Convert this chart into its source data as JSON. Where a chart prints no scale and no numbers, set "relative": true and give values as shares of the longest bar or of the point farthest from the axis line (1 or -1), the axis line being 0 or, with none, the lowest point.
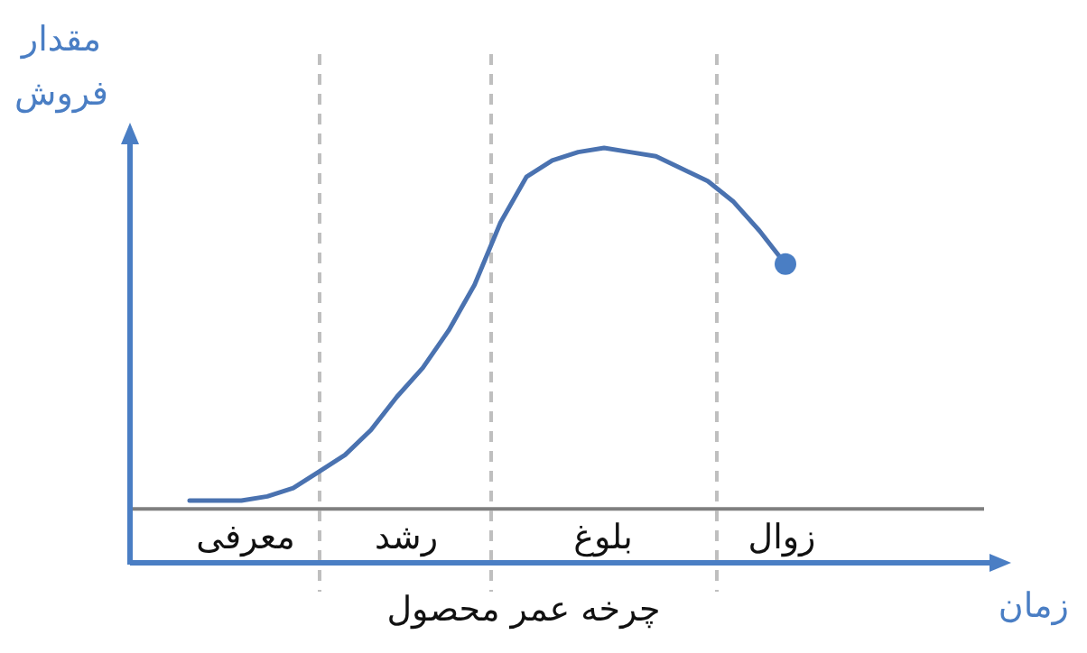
{
  "chart_data": {
    "type": "line",
    "relative": true,
    "ylabel": "مقدار فروش",
    "annotations": [
      "معرفی",
      "رشد",
      "بلوغ",
      "زوال",
      "چرخه عمر محصول",
      "زمان"
    ],
    "categories": [
      null,
      null,
      null,
      null,
      null,
      null,
      null,
      null,
      null,
      null,
      null,
      null,
      null,
      null,
      null,
      null,
      null,
      null,
      null,
      null,
      null,
      null,
      null,
      null
    ],
    "series": [
      {
        "color": "#4a72b0",
        "values": [
          0.15,
          0.15,
          0.15,
          0.16,
          0.18,
          0.22,
          0.26,
          0.32,
          0.4,
          0.47,
          0.56,
          0.67,
          0.82,
          0.93,
          0.97,
          0.99,
          1.0,
          0.99,
          0.98,
          0.95,
          0.92,
          0.87,
          0.8,
          0.72
        ]
      }
    ],
    "ref_lines": [
      {
        "axis": "y",
        "value": 0.13,
        "color": "#7f7f7f",
        "line_style": "solid"
      }
    ]
  }
}
